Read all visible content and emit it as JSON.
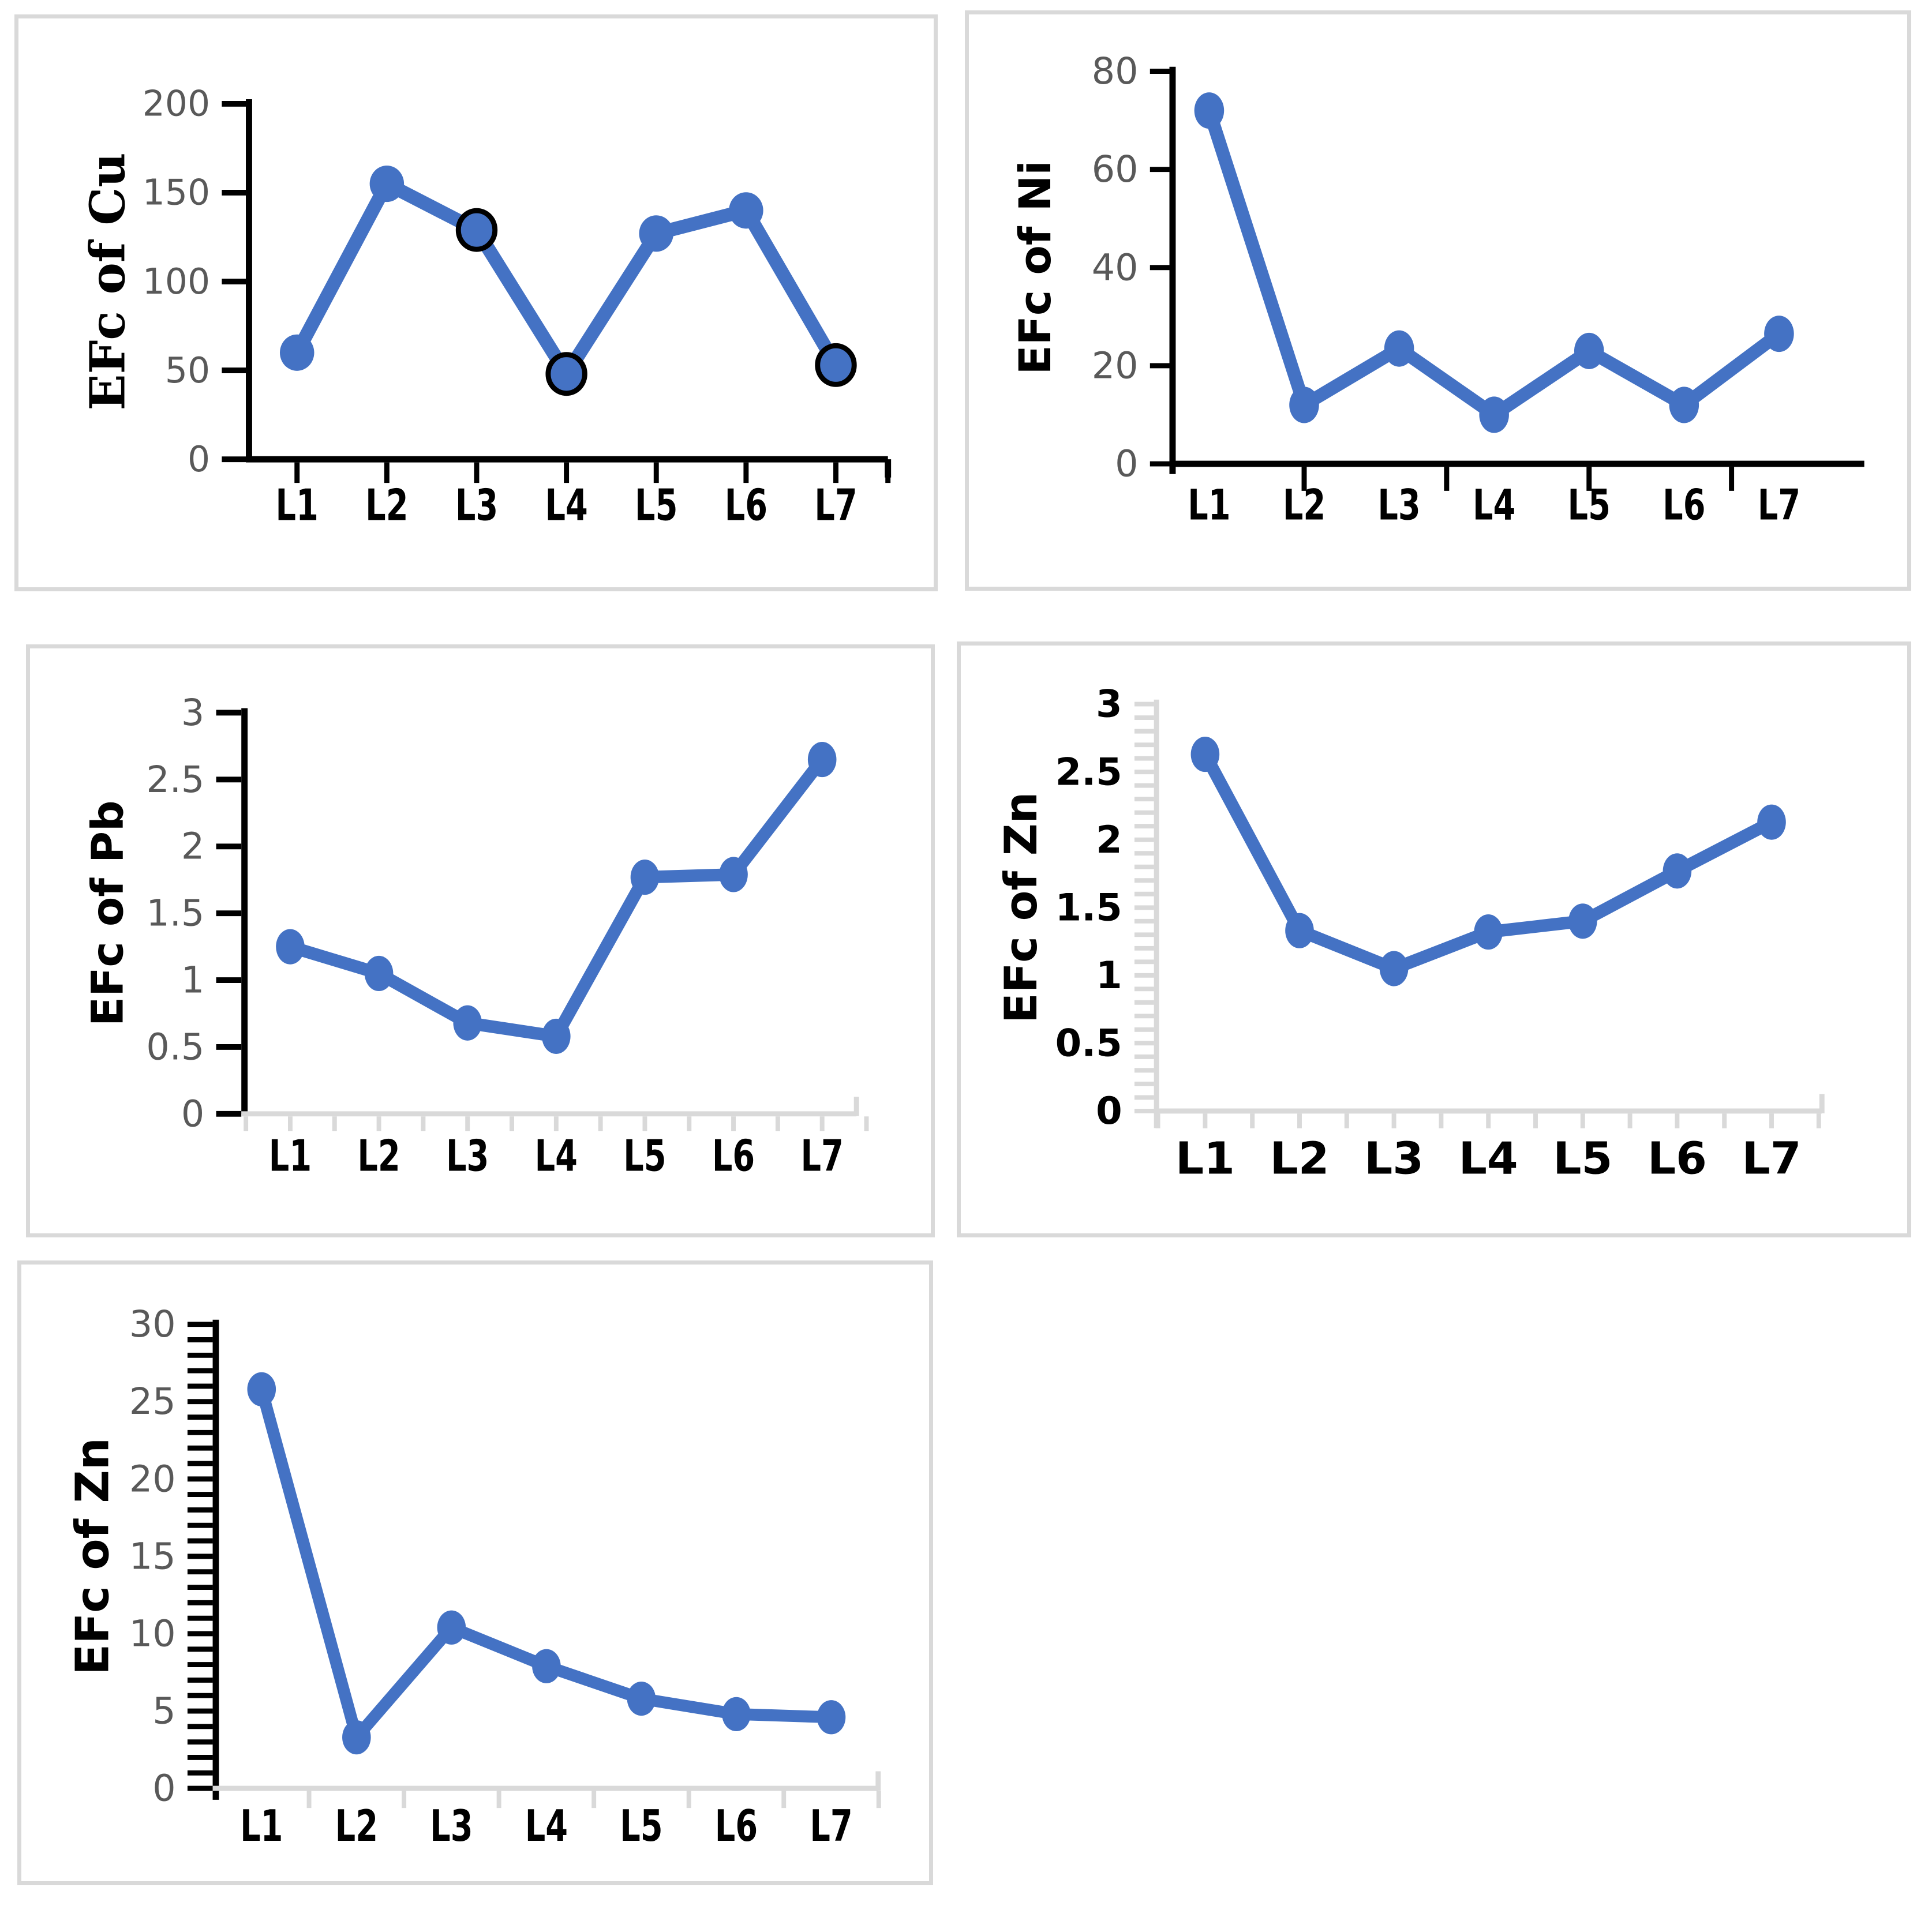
{
  "figure": {
    "description_labels": [
      "EFc of Cu",
      "EFc of Ni",
      "EFc of Pb",
      "EFc of Zn",
      "EFc of Zn"
    ],
    "x_categories": [
      "L1",
      "L2",
      "L3",
      "L4",
      "L5",
      "L6",
      "L7"
    ]
  },
  "styles": {
    "series_blue": "#4472C4",
    "marker_ring": "#000000",
    "axis_black": "#000000",
    "axis_gray": "#D9D9D9",
    "tick_label_gray": "#595959",
    "tick_label_black": "#000000",
    "title_black": "#000000",
    "panel_border": "#D9D9D9",
    "background": "#FFFFFF"
  },
  "chart_data": [
    {
      "id": "cu",
      "type": "line",
      "title": "",
      "ylabel": "EFc of Cu",
      "xlabel": "",
      "categories": [
        "L1",
        "L2",
        "L3",
        "L4",
        "L5",
        "L6",
        "L7"
      ],
      "values": [
        60,
        155,
        129,
        48,
        127,
        140,
        53
      ],
      "ring_marker_indices": [
        2,
        3,
        6
      ],
      "ylim": [
        0,
        200
      ],
      "yticks": [
        0,
        50,
        100,
        150,
        200
      ],
      "grid": false,
      "legend": "none"
    },
    {
      "id": "ni",
      "type": "line",
      "title": "",
      "ylabel": "EFc of Ni",
      "xlabel": "",
      "categories": [
        "L1",
        "L2",
        "L3",
        "L4",
        "L5",
        "L6",
        "L7"
      ],
      "values": [
        72,
        12,
        23.5,
        10,
        23,
        12,
        26.5
      ],
      "ring_marker_indices": [],
      "ylim": [
        0,
        80
      ],
      "yticks": [
        0,
        20,
        40,
        60,
        80
      ],
      "grid": false,
      "legend": "none"
    },
    {
      "id": "pb",
      "type": "line",
      "title": "",
      "ylabel": "EFc of Pb",
      "xlabel": "",
      "categories": [
        "L1",
        "L2",
        "L3",
        "L4",
        "L5",
        "L6",
        "L7"
      ],
      "values": [
        1.25,
        1.05,
        0.68,
        0.58,
        1.77,
        1.79,
        2.65
      ],
      "ring_marker_indices": [],
      "ylim": [
        0,
        3
      ],
      "yticks": [
        0,
        0.5,
        1,
        1.5,
        2,
        2.5,
        3
      ],
      "grid": false,
      "legend": "none"
    },
    {
      "id": "zn_mid",
      "type": "line",
      "title": "",
      "ylabel": "EFc of Zn",
      "xlabel": "",
      "categories": [
        "L1",
        "L2",
        "L3",
        "L4",
        "L5",
        "L6",
        "L7"
      ],
      "values": [
        2.63,
        1.33,
        1.05,
        1.32,
        1.4,
        1.77,
        2.13
      ],
      "ring_marker_indices": [],
      "ylim": [
        0,
        3
      ],
      "yticks": [
        0,
        0.5,
        1,
        1.5,
        2,
        2.5,
        3
      ],
      "grid": false,
      "legend": "none"
    },
    {
      "id": "zn_bottom",
      "type": "line",
      "title": "",
      "ylabel": "EFc of Zn",
      "xlabel": "",
      "categories": [
        "L1",
        "L2",
        "L3",
        "L4",
        "L5",
        "L6",
        "L7"
      ],
      "values": [
        25.8,
        3.3,
        10.4,
        7.9,
        5.8,
        4.8,
        4.6
      ],
      "ring_marker_indices": [],
      "ylim": [
        0,
        30
      ],
      "yticks": [
        0,
        5,
        10,
        15,
        20,
        25,
        30
      ],
      "grid": false,
      "legend": "none"
    }
  ]
}
